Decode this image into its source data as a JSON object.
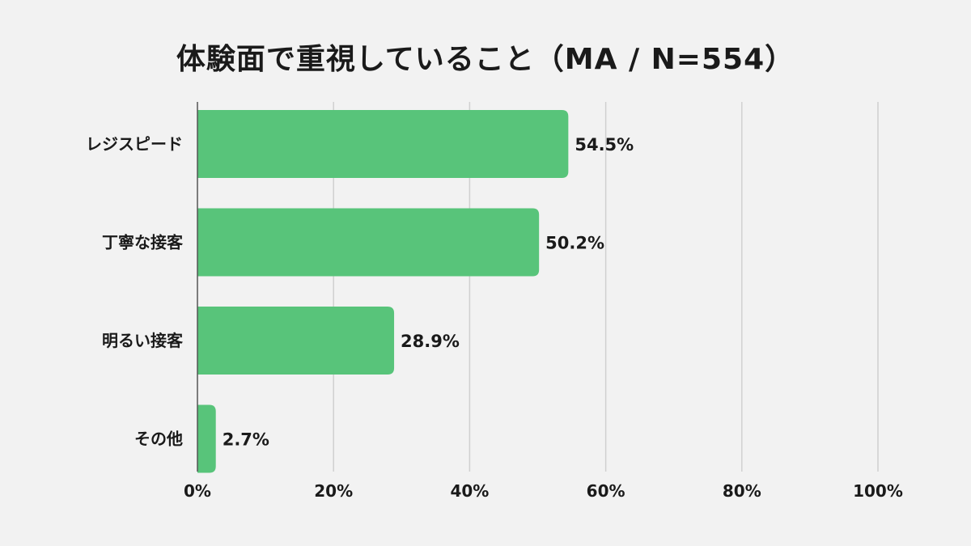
{
  "chart_data": {
    "type": "bar",
    "orientation": "horizontal",
    "title": "体験面で重視していること（MA / N=554）",
    "xlabel": "",
    "ylabel": "",
    "categories": [
      "レジスピード",
      "丁寧な接客",
      "明るい接客",
      "その他"
    ],
    "values": [
      54.5,
      50.2,
      28.9,
      2.7
    ],
    "value_labels": [
      "54.5%",
      "50.2%",
      "28.9%",
      "2.7%"
    ],
    "xlim": [
      0,
      100
    ],
    "xticks": [
      0,
      20,
      40,
      60,
      80,
      100
    ],
    "xtick_labels": [
      "0%",
      "20%",
      "40%",
      "60%",
      "80%",
      "100%"
    ],
    "grid": true,
    "legend": "none",
    "colors": {
      "bar": "#58c47a",
      "grid": "#d0d0d0",
      "axis": "#555555",
      "background": "#f2f2f2",
      "text": "#1a1a1a"
    }
  }
}
